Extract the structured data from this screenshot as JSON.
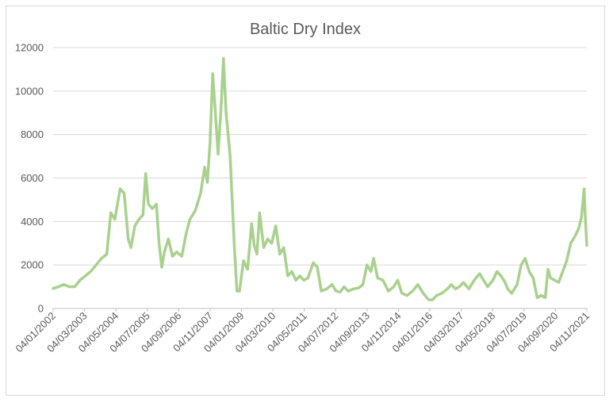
{
  "chart_data": {
    "type": "line",
    "title": "Baltic Dry Index",
    "xlabel": "",
    "ylabel": "",
    "ylim": [
      0,
      12000
    ],
    "yticks": [
      0,
      2000,
      4000,
      6000,
      8000,
      10000,
      12000
    ],
    "x_tick_labels": [
      "04/01/2002",
      "04/03/2003",
      "04/05/2004",
      "04/07/2005",
      "04/09/2006",
      "04/11/2007",
      "04/01/2009",
      "04/03/2010",
      "04/05/2011",
      "04/07/2012",
      "04/09/2013",
      "04/11/2014",
      "04/01/2016",
      "04/03/2017",
      "04/05/2018",
      "04/07/2019",
      "04/09/2020",
      "04/11/2021"
    ],
    "grid": true,
    "legend": "none",
    "colors": {
      "line": "#a9d18e",
      "grid": "#d9d9d9",
      "text": "#595959"
    },
    "series": [
      {
        "values": [
          [
            2002.0,
            920
          ],
          [
            2002.2,
            1000
          ],
          [
            2002.4,
            1100
          ],
          [
            2002.6,
            1000
          ],
          [
            2002.8,
            1000
          ],
          [
            2003.0,
            1300
          ],
          [
            2003.2,
            1500
          ],
          [
            2003.4,
            1700
          ],
          [
            2003.6,
            2000
          ],
          [
            2003.8,
            2300
          ],
          [
            2004.0,
            2500
          ],
          [
            2004.15,
            4400
          ],
          [
            2004.3,
            4100
          ],
          [
            2004.5,
            5500
          ],
          [
            2004.65,
            5300
          ],
          [
            2004.8,
            3200
          ],
          [
            2004.9,
            2800
          ],
          [
            2005.05,
            3800
          ],
          [
            2005.2,
            4100
          ],
          [
            2005.35,
            4300
          ],
          [
            2005.45,
            6200
          ],
          [
            2005.55,
            4800
          ],
          [
            2005.7,
            4600
          ],
          [
            2005.85,
            4800
          ],
          [
            2005.95,
            3000
          ],
          [
            2006.05,
            1900
          ],
          [
            2006.15,
            2600
          ],
          [
            2006.3,
            3200
          ],
          [
            2006.45,
            2400
          ],
          [
            2006.6,
            2600
          ],
          [
            2006.8,
            2400
          ],
          [
            2006.95,
            3400
          ],
          [
            2007.1,
            4100
          ],
          [
            2007.3,
            4500
          ],
          [
            2007.5,
            5300
          ],
          [
            2007.65,
            6500
          ],
          [
            2007.75,
            5800
          ],
          [
            2007.85,
            7600
          ],
          [
            2007.95,
            10800
          ],
          [
            2008.05,
            9000
          ],
          [
            2008.15,
            7100
          ],
          [
            2008.25,
            9000
          ],
          [
            2008.35,
            11500
          ],
          [
            2008.45,
            9000
          ],
          [
            2008.6,
            7000
          ],
          [
            2008.75,
            3000
          ],
          [
            2008.85,
            800
          ],
          [
            2008.95,
            800
          ],
          [
            2009.1,
            2200
          ],
          [
            2009.25,
            1800
          ],
          [
            2009.4,
            3900
          ],
          [
            2009.5,
            2900
          ],
          [
            2009.6,
            2500
          ],
          [
            2009.7,
            4400
          ],
          [
            2009.85,
            2800
          ],
          [
            2010.0,
            3200
          ],
          [
            2010.15,
            3000
          ],
          [
            2010.3,
            3800
          ],
          [
            2010.45,
            2500
          ],
          [
            2010.6,
            2800
          ],
          [
            2010.75,
            1500
          ],
          [
            2010.9,
            1700
          ],
          [
            2011.05,
            1300
          ],
          [
            2011.2,
            1500
          ],
          [
            2011.35,
            1300
          ],
          [
            2011.5,
            1400
          ],
          [
            2011.7,
            2100
          ],
          [
            2011.85,
            1900
          ],
          [
            2012.0,
            800
          ],
          [
            2012.2,
            900
          ],
          [
            2012.4,
            1100
          ],
          [
            2012.55,
            800
          ],
          [
            2012.7,
            750
          ],
          [
            2012.85,
            1000
          ],
          [
            2013.0,
            800
          ],
          [
            2013.2,
            900
          ],
          [
            2013.4,
            950
          ],
          [
            2013.55,
            1100
          ],
          [
            2013.7,
            2000
          ],
          [
            2013.85,
            1700
          ],
          [
            2013.95,
            2300
          ],
          [
            2014.1,
            1400
          ],
          [
            2014.3,
            1300
          ],
          [
            2014.5,
            800
          ],
          [
            2014.7,
            1000
          ],
          [
            2014.85,
            1300
          ],
          [
            2015.0,
            700
          ],
          [
            2015.2,
            600
          ],
          [
            2015.4,
            800
          ],
          [
            2015.6,
            1100
          ],
          [
            2015.8,
            700
          ],
          [
            2016.0,
            400
          ],
          [
            2016.15,
            400
          ],
          [
            2016.3,
            600
          ],
          [
            2016.5,
            700
          ],
          [
            2016.7,
            900
          ],
          [
            2016.85,
            1100
          ],
          [
            2017.0,
            900
          ],
          [
            2017.15,
            1000
          ],
          [
            2017.3,
            1200
          ],
          [
            2017.5,
            900
          ],
          [
            2017.7,
            1300
          ],
          [
            2017.9,
            1600
          ],
          [
            2018.05,
            1300
          ],
          [
            2018.2,
            1000
          ],
          [
            2018.4,
            1300
          ],
          [
            2018.55,
            1700
          ],
          [
            2018.7,
            1500
          ],
          [
            2018.85,
            1200
          ],
          [
            2018.95,
            900
          ],
          [
            2019.1,
            700
          ],
          [
            2019.3,
            1100
          ],
          [
            2019.45,
            2000
          ],
          [
            2019.6,
            2300
          ],
          [
            2019.75,
            1700
          ],
          [
            2019.9,
            1400
          ],
          [
            2020.05,
            500
          ],
          [
            2020.2,
            600
          ],
          [
            2020.35,
            500
          ],
          [
            2020.45,
            1800
          ],
          [
            2020.55,
            1400
          ],
          [
            2020.7,
            1300
          ],
          [
            2020.85,
            1200
          ],
          [
            2021.0,
            1700
          ],
          [
            2021.15,
            2200
          ],
          [
            2021.3,
            3000
          ],
          [
            2021.45,
            3300
          ],
          [
            2021.6,
            3700
          ],
          [
            2021.7,
            4200
          ],
          [
            2021.8,
            5500
          ],
          [
            2021.85,
            4000
          ],
          [
            2021.9,
            2900
          ]
        ]
      }
    ]
  }
}
